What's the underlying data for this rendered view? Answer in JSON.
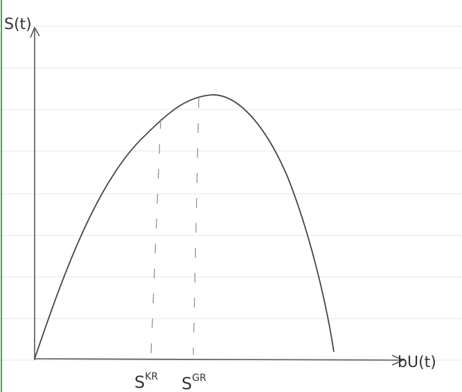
{
  "axes": {
    "y_label": "S(t)",
    "x_label": "bU(t)"
  },
  "markers": [
    {
      "base": "S",
      "superscript": "KR"
    },
    {
      "base": "S",
      "superscript": "GR"
    }
  ]
}
